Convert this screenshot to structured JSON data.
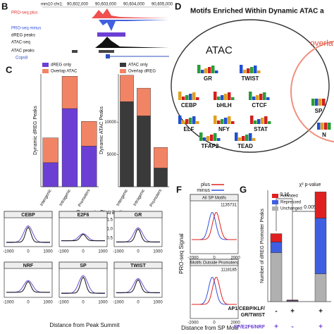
{
  "panels": {
    "B": {
      "label": "B",
      "assembly": "mm10 chr1:",
      "coordinates": [
        "90,602,000",
        "90,603,000",
        "90,604,000",
        "90,605,000"
      ],
      "tracks": [
        "PRO-seq plus",
        "PRO-seq minus",
        "dREG peaks",
        "ATAC-seq",
        "ATAC peaks"
      ],
      "gene": "Cops8"
    },
    "C": {
      "label": "C",
      "xlabel": "Genomic Distribution"
    },
    "D": {
      "label": "D",
      "title": "Motifs Enriched Within Dynamic ATAC a",
      "set_label": "ATAC",
      "overlap_label": "overla",
      "motifs": [
        "GR",
        "TWIST",
        "CEBP",
        "bHLH",
        "CTCF",
        "ELF",
        "NFY",
        "STAT",
        "TFAP2",
        "TEAD"
      ],
      "overlap_motifs": [
        "SP",
        "N"
      ]
    },
    "E": {
      "subplots": [
        "CEBP",
        "E2F6",
        "GR",
        "NRF",
        "SP",
        "TWIST"
      ],
      "xticks": [
        "-1000",
        "0",
        "1000"
      ],
      "yticks": [
        "1.5",
        "1.0",
        "0.5"
      ],
      "xlabel": "Distance from Peak Summit"
    },
    "F": {
      "label": "F",
      "legend": [
        "plus",
        "minus"
      ],
      "subplots": [
        {
          "title": "All SP Motifs",
          "count": "1135731"
        },
        {
          "title": "Motifs Outside Promoters",
          "count": "1118185"
        }
      ],
      "ylabel": "PRO-seq Signal",
      "xticks": [
        "-2000",
        "0",
        "2000"
      ],
      "xlabel": "Distance from SP Motif"
    },
    "G": {
      "label": "G",
      "pvalue_title": "χ² p-value",
      "pvalues": [
        "0.16",
        "0.005"
      ],
      "rows": [
        {
          "name": "AP1/CEBP/KLF/",
          "name2": "GR/TWIST",
          "signs": [
            "-",
            "+",
            "+"
          ]
        },
        {
          "name": "SP/E2F6/NRF",
          "signs": [
            "+",
            "-",
            "+"
          ]
        }
      ]
    }
  },
  "chart_data": [
    {
      "type": "stacked_bar",
      "ylabel": "Dynamic dREG Peaks",
      "categories": [
        "Intergenic",
        "Intragenic",
        "Promoters"
      ],
      "series": [
        {
          "name": "dREG only",
          "color": "#6b3fd4",
          "values": [
            320,
            1040,
            540
          ]
        },
        {
          "name": "Overlap ATAC",
          "color": "#f28466",
          "values": [
            330,
            430,
            330
          ]
        }
      ],
      "ylim": [
        0,
        1500
      ]
    },
    {
      "type": "stacked_bar",
      "ylabel": "Dynamic ATAC Peaks",
      "categories": [
        "Intergenic",
        "Intragenic",
        "Promoters"
      ],
      "series": [
        {
          "name": "ATAC only",
          "color": "#3a3a3a",
          "values": [
            13200,
            11000,
            2900
          ]
        },
        {
          "name": "Overlap dREG",
          "color": "#f28466",
          "values": [
            4100,
            4300,
            3200
          ]
        }
      ],
      "ylim": [
        0,
        17500
      ],
      "yticks": [
        5000,
        10000
      ]
    },
    {
      "type": "stacked_bar",
      "ylabel": "Number of dREG Promoter Peaks",
      "categories": [
        null,
        null,
        null
      ],
      "series": [
        {
          "name": "Unchanged",
          "color": "#b0b0b0",
          "values": [
            88,
            1,
            50
          ]
        },
        {
          "name": "Repressed",
          "color": "#3f5fe0",
          "values": [
            19,
            1,
            100
          ]
        },
        {
          "name": "Activated",
          "color": "#e02020",
          "values": [
            15,
            1,
            47
          ]
        }
      ],
      "ylim": [
        0,
        200
      ]
    }
  ]
}
